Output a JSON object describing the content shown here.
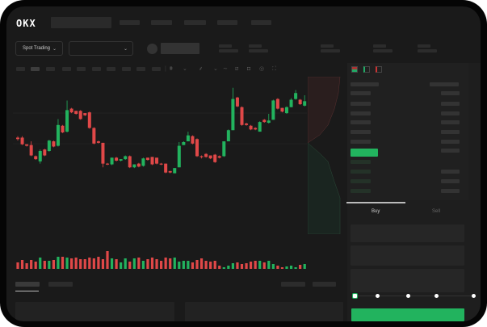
{
  "header": {
    "logo": "OKX"
  },
  "toolbar": {
    "market_dropdown": "Spot Trading"
  },
  "trade_panel": {
    "tabs": [
      {
        "label": "Buy",
        "active": true
      },
      {
        "label": "Sell",
        "active": false
      }
    ],
    "leverage_slider_value": 0
  },
  "colors": {
    "up": "#22b35e",
    "down": "#e04848",
    "background": "#1a1a1a"
  },
  "icons": [
    "chevron-down-icon",
    "indicator-icon",
    "line-icon",
    "ruler-icon",
    "camera-icon",
    "settings-icon",
    "fullscreen-icon",
    "orderbook-both-icon",
    "orderbook-bids-icon",
    "orderbook-asks-icon"
  ],
  "chart_data": {
    "type": "candlestick",
    "note_scale": "relative price units (no axis printed)",
    "candles": [
      [
        68,
        66,
        70,
        64
      ],
      [
        68,
        59,
        70,
        58
      ],
      [
        59,
        57,
        59,
        56
      ],
      [
        58,
        44,
        63,
        43
      ],
      [
        43,
        39,
        44,
        38
      ],
      [
        36,
        50,
        52,
        33
      ],
      [
        52,
        44,
        53,
        43
      ],
      [
        50,
        64,
        65,
        49
      ],
      [
        63,
        56,
        64,
        55
      ],
      [
        57,
        85,
        93,
        56
      ],
      [
        84,
        75,
        85,
        74
      ],
      [
        76,
        105,
        118,
        75
      ],
      [
        107,
        102,
        108,
        101
      ],
      [
        104,
        100,
        104,
        99
      ],
      [
        104,
        93,
        105,
        92
      ],
      [
        101,
        98,
        101,
        97
      ],
      [
        102,
        81,
        103,
        80
      ],
      [
        81,
        60,
        82,
        59
      ],
      [
        63,
        61,
        64,
        60
      ],
      [
        61,
        33,
        61,
        28
      ],
      [
        33,
        32,
        34,
        31
      ],
      [
        32,
        41,
        41,
        31
      ],
      [
        41,
        37,
        42,
        36
      ],
      [
        37,
        39,
        39,
        36
      ],
      [
        39,
        43,
        44,
        38
      ],
      [
        43,
        28,
        44,
        27
      ],
      [
        28,
        32,
        32,
        27
      ],
      [
        33,
        29,
        34,
        28
      ],
      [
        30,
        40,
        41,
        29
      ],
      [
        41,
        38,
        41,
        37
      ],
      [
        42,
        32,
        42,
        31
      ],
      [
        41,
        33,
        41,
        32
      ],
      [
        33,
        32,
        34,
        31
      ],
      [
        33,
        21,
        33,
        20
      ],
      [
        23,
        21,
        23,
        20
      ],
      [
        20,
        27,
        27,
        20
      ],
      [
        28,
        57,
        62,
        28
      ],
      [
        58,
        62,
        63,
        58
      ],
      [
        63,
        71,
        76,
        63
      ],
      [
        70,
        60,
        71,
        59
      ],
      [
        66,
        43,
        67,
        42
      ],
      [
        43,
        42,
        44,
        40
      ],
      [
        46,
        42,
        47,
        41
      ],
      [
        44,
        40,
        44,
        39
      ],
      [
        45,
        35,
        46,
        34
      ],
      [
        43,
        41,
        44,
        40
      ],
      [
        43,
        63,
        63,
        42
      ],
      [
        63,
        78,
        79,
        63
      ],
      [
        78,
        120,
        135,
        78
      ],
      [
        122,
        110,
        123,
        109
      ],
      [
        109,
        85,
        110,
        84
      ],
      [
        87,
        85,
        88,
        84
      ],
      [
        84,
        79,
        85,
        78
      ],
      [
        81,
        79,
        82,
        78
      ],
      [
        76,
        89,
        90,
        76
      ],
      [
        92,
        89,
        93,
        88
      ],
      [
        88,
        91,
        100,
        87
      ],
      [
        92,
        118,
        119,
        92
      ],
      [
        120,
        107,
        121,
        106
      ],
      [
        108,
        103,
        108,
        102
      ],
      [
        101,
        109,
        110,
        100
      ],
      [
        109,
        119,
        121,
        109
      ],
      [
        120,
        128,
        132,
        119
      ],
      [
        119,
        113,
        120,
        112
      ],
      [
        111,
        117,
        125,
        110
      ]
    ],
    "volume": [
      8,
      11,
      7,
      11,
      9,
      14,
      10,
      10,
      11,
      15,
      15,
      14,
      13,
      14,
      12,
      12,
      14,
      13,
      15,
      12,
      22,
      13,
      12,
      8,
      13,
      9,
      13,
      14,
      10,
      12,
      14,
      12,
      10,
      14,
      13,
      14,
      9,
      10,
      10,
      8,
      11,
      13,
      10,
      9,
      10,
      4,
      2,
      4,
      7,
      8,
      6,
      7,
      9,
      10,
      10,
      8,
      10,
      6,
      4,
      2,
      3,
      4,
      2,
      5,
      6
    ]
  }
}
